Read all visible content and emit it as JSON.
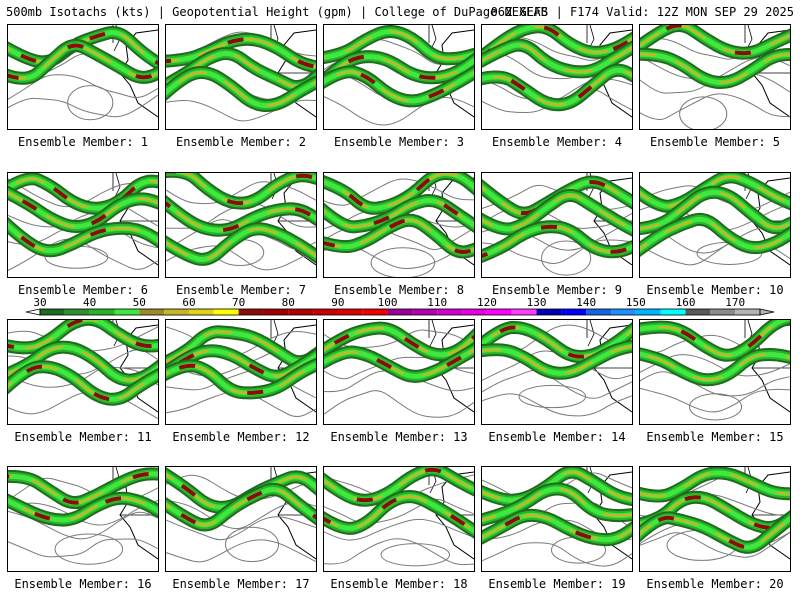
{
  "header": {
    "left_title": "500mb Isotachs (kts) | Geopotential Height (gpm) | College of DuPage NEXLAB",
    "right_title": "06Z GEFS | F174 Valid: 12Z MON SEP 29 2025"
  },
  "member_label_prefix": "Ensemble Member:",
  "members": [
    {
      "id": "1",
      "label": "Ensemble Member: 1"
    },
    {
      "id": "2",
      "label": "Ensemble Member: 2"
    },
    {
      "id": "3",
      "label": "Ensemble Member: 3"
    },
    {
      "id": "4",
      "label": "Ensemble Member: 4"
    },
    {
      "id": "5",
      "label": "Ensemble Member: 5"
    },
    {
      "id": "6",
      "label": "Ensemble Member: 6"
    },
    {
      "id": "7",
      "label": "Ensemble Member: 7"
    },
    {
      "id": "8",
      "label": "Ensemble Member: 8"
    },
    {
      "id": "9",
      "label": "Ensemble Member: 9"
    },
    {
      "id": "10",
      "label": "Ensemble Member: 10"
    },
    {
      "id": "11",
      "label": "Ensemble Member: 11"
    },
    {
      "id": "12",
      "label": "Ensemble Member: 12"
    },
    {
      "id": "13",
      "label": "Ensemble Member: 13"
    },
    {
      "id": "14",
      "label": "Ensemble Member: 14"
    },
    {
      "id": "15",
      "label": "Ensemble Member: 15"
    },
    {
      "id": "16",
      "label": "Ensemble Member: 16"
    },
    {
      "id": "17",
      "label": "Ensemble Member: 17"
    },
    {
      "id": "18",
      "label": "Ensemble Member: 18"
    },
    {
      "id": "19",
      "label": "Ensemble Member: 19"
    },
    {
      "id": "20",
      "label": "Ensemble Member: 20"
    }
  ],
  "colorbar": {
    "units": "kts",
    "labels": [
      "30",
      "40",
      "50",
      "60",
      "70",
      "80",
      "90",
      "100",
      "110",
      "120",
      "130",
      "140",
      "150",
      "160",
      "170"
    ],
    "bins": [
      {
        "from": 30,
        "to": 35,
        "color": "#1f6b1f"
      },
      {
        "from": 35,
        "to": 40,
        "color": "#2f8f2f"
      },
      {
        "from": 40,
        "to": 45,
        "color": "#28b428"
      },
      {
        "from": 45,
        "to": 50,
        "color": "#3ee83e"
      },
      {
        "from": 50,
        "to": 55,
        "color": "#9c8a28"
      },
      {
        "from": 55,
        "to": 60,
        "color": "#c8b428"
      },
      {
        "from": 60,
        "to": 65,
        "color": "#e6d214"
      },
      {
        "from": 65,
        "to": 70,
        "color": "#ffff00"
      },
      {
        "from": 70,
        "to": 75,
        "color": "#8b0a0a"
      },
      {
        "from": 75,
        "to": 80,
        "color": "#a00000"
      },
      {
        "from": 80,
        "to": 85,
        "color": "#b40000"
      },
      {
        "from": 85,
        "to": 90,
        "color": "#c80000"
      },
      {
        "from": 90,
        "to": 95,
        "color": "#dc0000"
      },
      {
        "from": 95,
        "to": 100,
        "color": "#f00000"
      },
      {
        "from": 100,
        "to": 105,
        "color": "#9b009b"
      },
      {
        "from": 105,
        "to": 110,
        "color": "#b400b4"
      },
      {
        "from": 110,
        "to": 115,
        "color": "#d200d2"
      },
      {
        "from": 115,
        "to": 120,
        "color": "#e600e6"
      },
      {
        "from": 120,
        "to": 125,
        "color": "#ff00ff"
      },
      {
        "from": 125,
        "to": 130,
        "color": "#ff3cff"
      },
      {
        "from": 130,
        "to": 135,
        "color": "#0000b4"
      },
      {
        "from": 135,
        "to": 140,
        "color": "#0000ff"
      },
      {
        "from": 140,
        "to": 145,
        "color": "#1464e6"
      },
      {
        "from": 145,
        "to": 150,
        "color": "#1e90ff"
      },
      {
        "from": 150,
        "to": 155,
        "color": "#00b4ff"
      },
      {
        "from": 155,
        "to": 160,
        "color": "#00ffff"
      },
      {
        "from": 160,
        "to": 165,
        "color": "#5a5a5a"
      },
      {
        "from": 165,
        "to": 170,
        "color": "#8c8c8c"
      },
      {
        "from": 170,
        "to": 175,
        "color": "#b4b4b4"
      }
    ]
  }
}
